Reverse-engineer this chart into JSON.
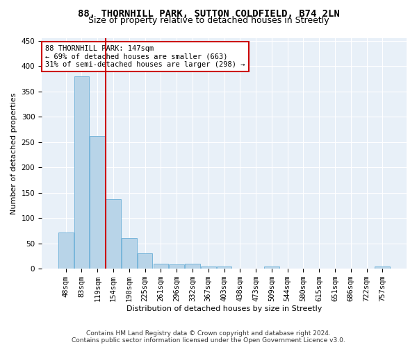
{
  "title_line1": "88, THORNHILL PARK, SUTTON COLDFIELD, B74 2LN",
  "title_line2": "Size of property relative to detached houses in Streetly",
  "xlabel": "Distribution of detached houses by size in Streetly",
  "ylabel": "Number of detached properties",
  "bar_color": "#b8d4e8",
  "bar_edge_color": "#6aaed6",
  "vline_color": "#cc0000",
  "vline_bin_index": 3,
  "annotation_text": "88 THORNHILL PARK: 147sqm\n← 69% of detached houses are smaller (663)\n31% of semi-detached houses are larger (298) →",
  "annotation_box_color": "white",
  "annotation_box_edge": "#cc0000",
  "bins": [
    "48sqm",
    "83sqm",
    "119sqm",
    "154sqm",
    "190sqm",
    "225sqm",
    "261sqm",
    "296sqm",
    "332sqm",
    "367sqm",
    "403sqm",
    "438sqm",
    "473sqm",
    "509sqm",
    "544sqm",
    "580sqm",
    "615sqm",
    "651sqm",
    "686sqm",
    "722sqm",
    "757sqm"
  ],
  "values": [
    72,
    380,
    262,
    137,
    60,
    30,
    10,
    9,
    10,
    5,
    5,
    0,
    0,
    4,
    0,
    0,
    0,
    0,
    0,
    0,
    4
  ],
  "ylim": [
    0,
    455
  ],
  "yticks": [
    0,
    50,
    100,
    150,
    200,
    250,
    300,
    350,
    400,
    450
  ],
  "plot_bg_color": "#e8f0f8",
  "footer_line1": "Contains HM Land Registry data © Crown copyright and database right 2024.",
  "footer_line2": "Contains public sector information licensed under the Open Government Licence v3.0.",
  "title_fontsize": 10,
  "subtitle_fontsize": 9,
  "axis_label_fontsize": 8,
  "tick_fontsize": 7.5,
  "footer_fontsize": 6.5
}
